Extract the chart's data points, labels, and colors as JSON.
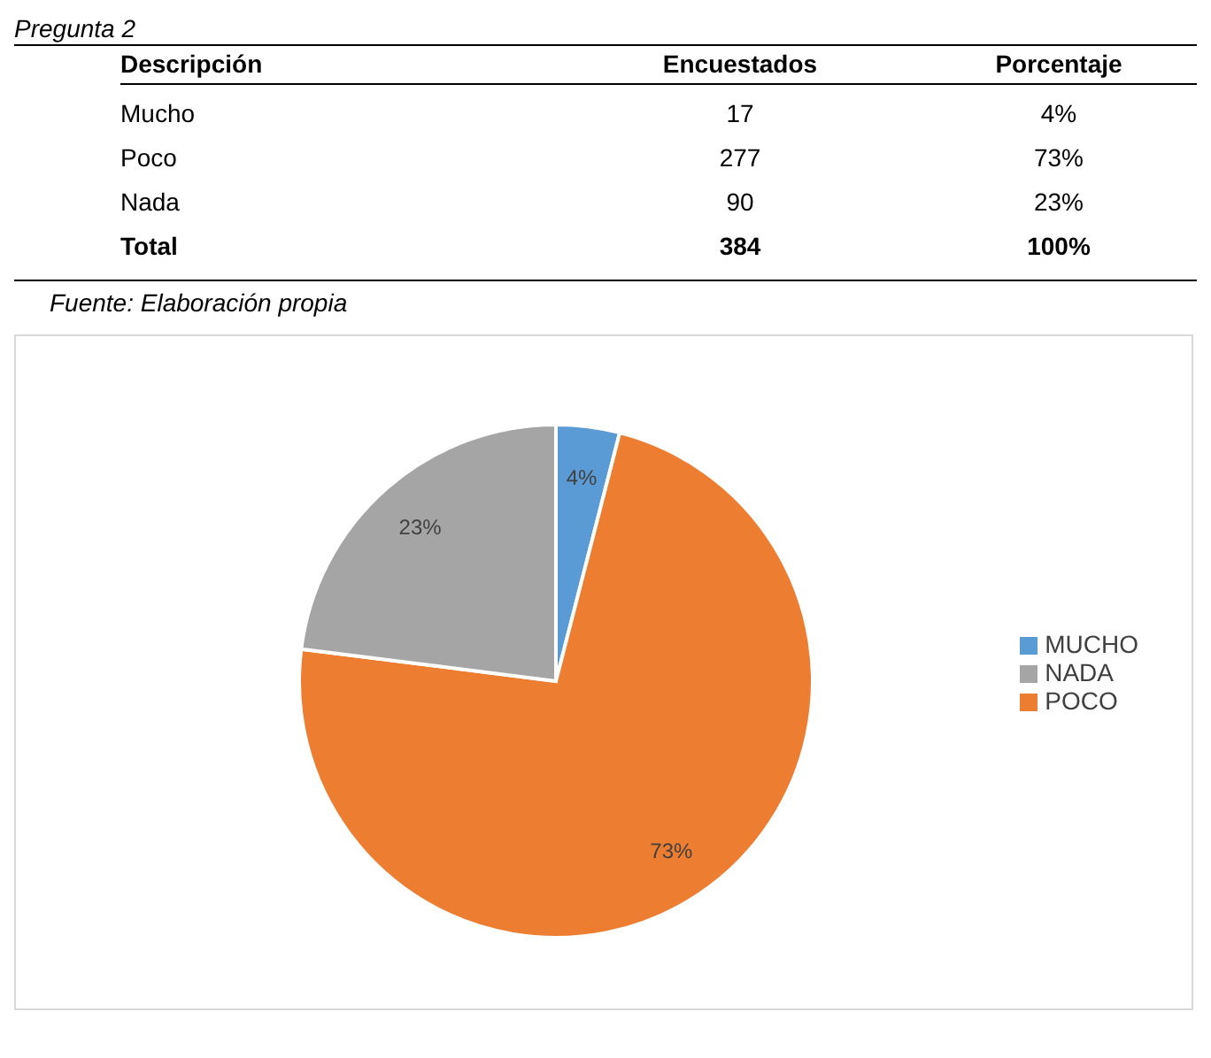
{
  "chart_data": [
    {
      "type": "other",
      "title": "Pregunta 2",
      "annotations": [
        "Descripción",
        "Encuestados",
        "Porcentaje",
        "Mucho",
        "17",
        "4%",
        "Poco",
        "277",
        "73%",
        "Nada",
        "90",
        "23%",
        "Total",
        "384",
        "100%",
        "Fuente: Elaboración propia"
      ]
    },
    {
      "type": "pie",
      "categories": [
        "MUCHO",
        "POCO",
        "NADA"
      ],
      "values": [
        4,
        73,
        23
      ],
      "colors": [
        "#5b9bd5",
        "#ed7d31",
        "#a5a5a5"
      ],
      "value_labels": [
        "4%",
        "73%",
        "23%"
      ],
      "legend": "right"
    }
  ]
}
